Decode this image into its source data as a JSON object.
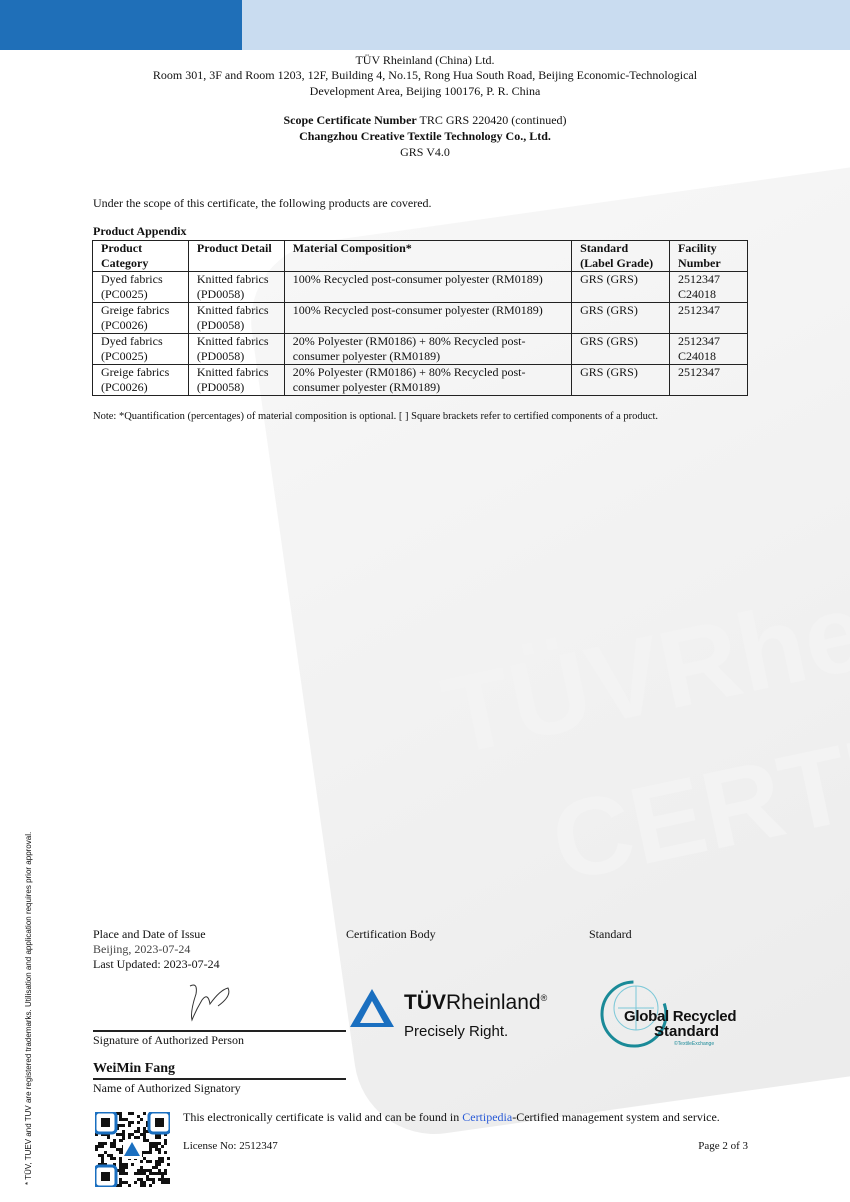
{
  "header": {
    "issuer": "TÜV Rheinland  (China) Ltd.",
    "address1": "Room 301, 3F and Room 1203, 12F, Building 4, No.15, Rong Hua South Road, Beijing Economic-Technological",
    "address2": "Development  Area, Beijing 100176, P. R. China",
    "scope_label": "Scope Certificate Number",
    "scope_number": "TRC GRS 220420",
    "scope_suffix": "(continued)",
    "company": "Changzhou Creative Textile Technology Co., Ltd.",
    "version": "GRS V4.0"
  },
  "intro": "Under the scope of this certificate, the following products are covered.",
  "appendix_title": "Product Appendix",
  "table": {
    "headers": [
      "Product Category",
      "Product Detail",
      "Material Composition*",
      "Standard (Label Grade)",
      "Facility Number"
    ],
    "rows": [
      [
        "Dyed fabrics (PC0025)",
        "Knitted fabrics (PD0058)",
        "100% Recycled post-consumer polyester (RM0189)",
        "GRS (GRS)",
        "2512347 C24018"
      ],
      [
        "Greige fabrics (PC0026)",
        "Knitted fabrics (PD0058)",
        "100% Recycled post-consumer polyester (RM0189)",
        "GRS (GRS)",
        "2512347"
      ],
      [
        "Dyed fabrics (PC0025)",
        "Knitted fabrics (PD0058)",
        "20% Polyester (RM0186) + 80% Recycled post-consumer polyester (RM0189)",
        "GRS (GRS)",
        "2512347 C24018"
      ],
      [
        "Greige fabrics (PC0026)",
        "Knitted fabrics (PD0058)",
        "20% Polyester (RM0186) + 80% Recycled post-consumer polyester (RM0189)",
        "GRS (GRS)",
        "2512347"
      ]
    ]
  },
  "note": "Note: *Quantification (percentages) of material composition  is optional. [ ] Square brackets refer to certified components of a product.",
  "footer": {
    "place_label": "Place and Date of Issue",
    "place_value": "Beijing, 2023-07-24",
    "last_updated": "Last Updated:  2023-07-24",
    "cert_body_label": "Certification Body",
    "standard_label": "Standard",
    "signature_label": "Signature  of Authorized Person",
    "signatory_name": "WeiMin Fang",
    "signatory_label": "Name of Authorized  Signatory",
    "validity_pre": "This electronically  certificate  is valid and  can be found in ",
    "validity_link": "Certipedia",
    "validity_post": "-Certified  management  system and service.",
    "license": "License No: 2512347",
    "page": "Page 2 of 3"
  },
  "logos": {
    "tuv_bold": "TÜV",
    "tuv_rest": "Rheinland",
    "tuv_reg": "®",
    "tuv_tagline": "Precisely Right.",
    "grs_line1": "Global Recycled",
    "grs_line2": "Standard",
    "grs_by": "©TextileExchange"
  },
  "watermark": {
    "line1": "TÜVRhein",
    "line2": "CERTIF"
  },
  "side_note": "* TÜV, TUEV and TUV are registered trademarks. Utilisation and application requires prior approval.",
  "colors": {
    "header_dark": "#1f6fb8",
    "header_light": "#c9dcf0",
    "tuv_blue": "#1a6fc0",
    "grs_teal": "#1a8a98"
  }
}
